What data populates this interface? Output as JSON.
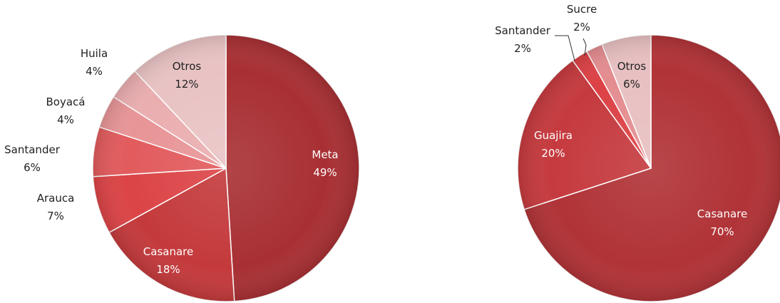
{
  "chart_data": [
    {
      "type": "pie",
      "title": "",
      "slices": [
        {
          "label": "Meta",
          "value": 49,
          "value_label": "49%",
          "color": "#a83034"
        },
        {
          "label": "Casanare",
          "value": 18,
          "value_label": "18%",
          "color": "#c43a3c"
        },
        {
          "label": "Arauca",
          "value": 7,
          "value_label": "7%",
          "color": "#dc4447"
        },
        {
          "label": "Santander",
          "value": 6,
          "value_label": "6%",
          "color": "#e25b5d"
        },
        {
          "label": "Boyacá",
          "value": 4,
          "value_label": "4%",
          "color": "#e89597"
        },
        {
          "label": "Huila",
          "value": 4,
          "value_label": "4%",
          "color": "#eaaeb0"
        },
        {
          "label": "Otros",
          "value": 12,
          "value_label": "12%",
          "color": "#e9c3c4"
        }
      ]
    },
    {
      "type": "pie",
      "title": "",
      "slices": [
        {
          "label": "Casanare",
          "value": 70,
          "value_label": "70%",
          "color": "#b03337"
        },
        {
          "label": "Guajira",
          "value": 20,
          "value_label": "20%",
          "color": "#c53a3e"
        },
        {
          "label": "Santander",
          "value": 2,
          "value_label": "2%",
          "color": "#dc4145"
        },
        {
          "label": "Sucre",
          "value": 2,
          "value_label": "2%",
          "color": "#e48d90"
        },
        {
          "label": "Otros",
          "value": 6,
          "value_label": "6%",
          "color": "#e8c0c1"
        }
      ]
    }
  ]
}
